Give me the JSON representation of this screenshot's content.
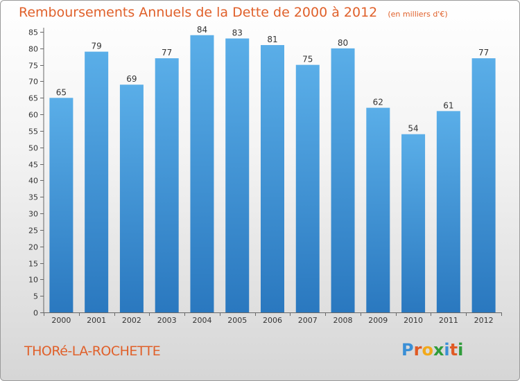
{
  "title": "Remboursements Annuels de la Dette de 2000 à 2012",
  "subtitle": "(en milliers d'€)",
  "city": "THORé-LA-ROCHETTE",
  "logo_letters": [
    "P",
    "r",
    "o",
    "x",
    "i",
    "t",
    "i"
  ],
  "logo_colors": [
    "#3a8fd6",
    "#e05a24",
    "#f2a91a",
    "#2f9c3a",
    "#3a8fd6",
    "#e05a24",
    "#2f9c3a"
  ],
  "chart_data": {
    "type": "bar",
    "categories": [
      "2000",
      "2001",
      "2002",
      "2003",
      "2004",
      "2005",
      "2006",
      "2007",
      "2008",
      "2009",
      "2010",
      "2011",
      "2012"
    ],
    "values": [
      65,
      79,
      69,
      77,
      84,
      83,
      81,
      75,
      80,
      62,
      54,
      61,
      77
    ],
    "yticks": [
      0,
      5,
      10,
      15,
      20,
      25,
      30,
      35,
      40,
      45,
      50,
      55,
      60,
      65,
      70,
      75,
      80,
      85
    ],
    "ylim": [
      0,
      85
    ],
    "grid": false,
    "bar_color_top": "#5aaee8",
    "bar_color_bottom": "#2a78bf",
    "text_color": "#333333",
    "title_color": "#e0602a"
  }
}
